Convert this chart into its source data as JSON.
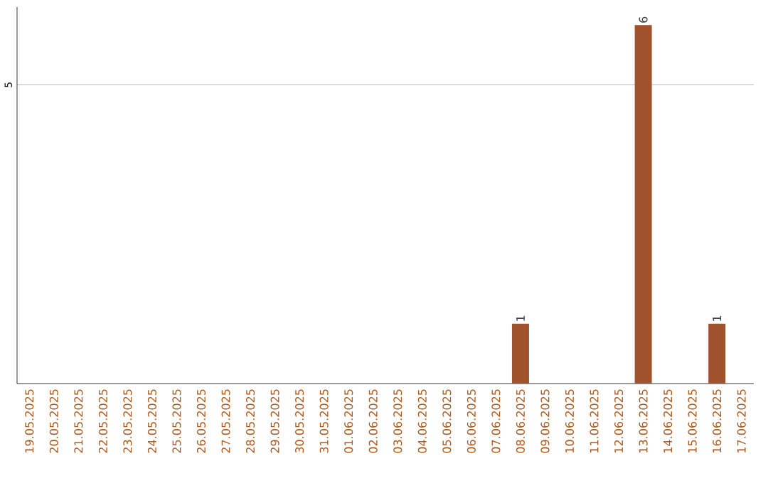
{
  "chart_data": {
    "type": "bar",
    "categories": [
      "19.05.2025",
      "20.05.2025",
      "21.05.2025",
      "22.05.2025",
      "23.05.2025",
      "24.05.2025",
      "25.05.2025",
      "26.05.2025",
      "27.05.2025",
      "28.05.2025",
      "29.05.2025",
      "30.05.2025",
      "31.05.2025",
      "01.06.2025",
      "02.06.2025",
      "03.06.2025",
      "04.06.2025",
      "05.06.2025",
      "06.06.2025",
      "07.06.2025",
      "08.06.2025",
      "09.06.2025",
      "10.06.2025",
      "11.06.2025",
      "12.06.2025",
      "13.06.2025",
      "14.06.2025",
      "15.06.2025",
      "16.06.2025",
      "17.06.2025"
    ],
    "values": [
      null,
      null,
      null,
      null,
      null,
      null,
      null,
      null,
      null,
      null,
      null,
      null,
      null,
      null,
      null,
      null,
      null,
      null,
      null,
      null,
      1,
      null,
      null,
      null,
      null,
      6,
      null,
      null,
      1,
      null
    ],
    "data_labels": true,
    "color": "#a0522d",
    "ylim": [
      0,
      6.3
    ],
    "yticks": [
      5
    ],
    "grid": "y"
  }
}
